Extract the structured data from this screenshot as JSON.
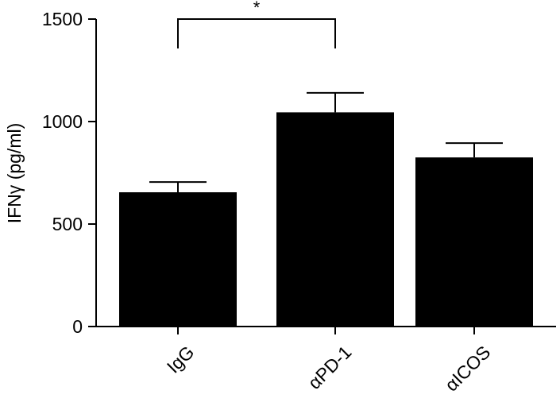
{
  "chart_data": {
    "type": "bar",
    "categories": [
      "IgG",
      "αPD-1",
      "αICOS"
    ],
    "values": [
      655,
      1045,
      825
    ],
    "errors": [
      50,
      95,
      70
    ],
    "ylabel": "IFNγ (pg/ml)",
    "ylim": [
      0,
      1500
    ],
    "yticks": [
      0,
      500,
      1000,
      1500
    ],
    "ytick_labels": [
      "0",
      "500",
      "1000",
      "1500"
    ],
    "bar_color": "#000000",
    "grid": false,
    "significance": [
      {
        "from": "IgG",
        "to": "αPD-1",
        "label": "*"
      }
    ]
  }
}
